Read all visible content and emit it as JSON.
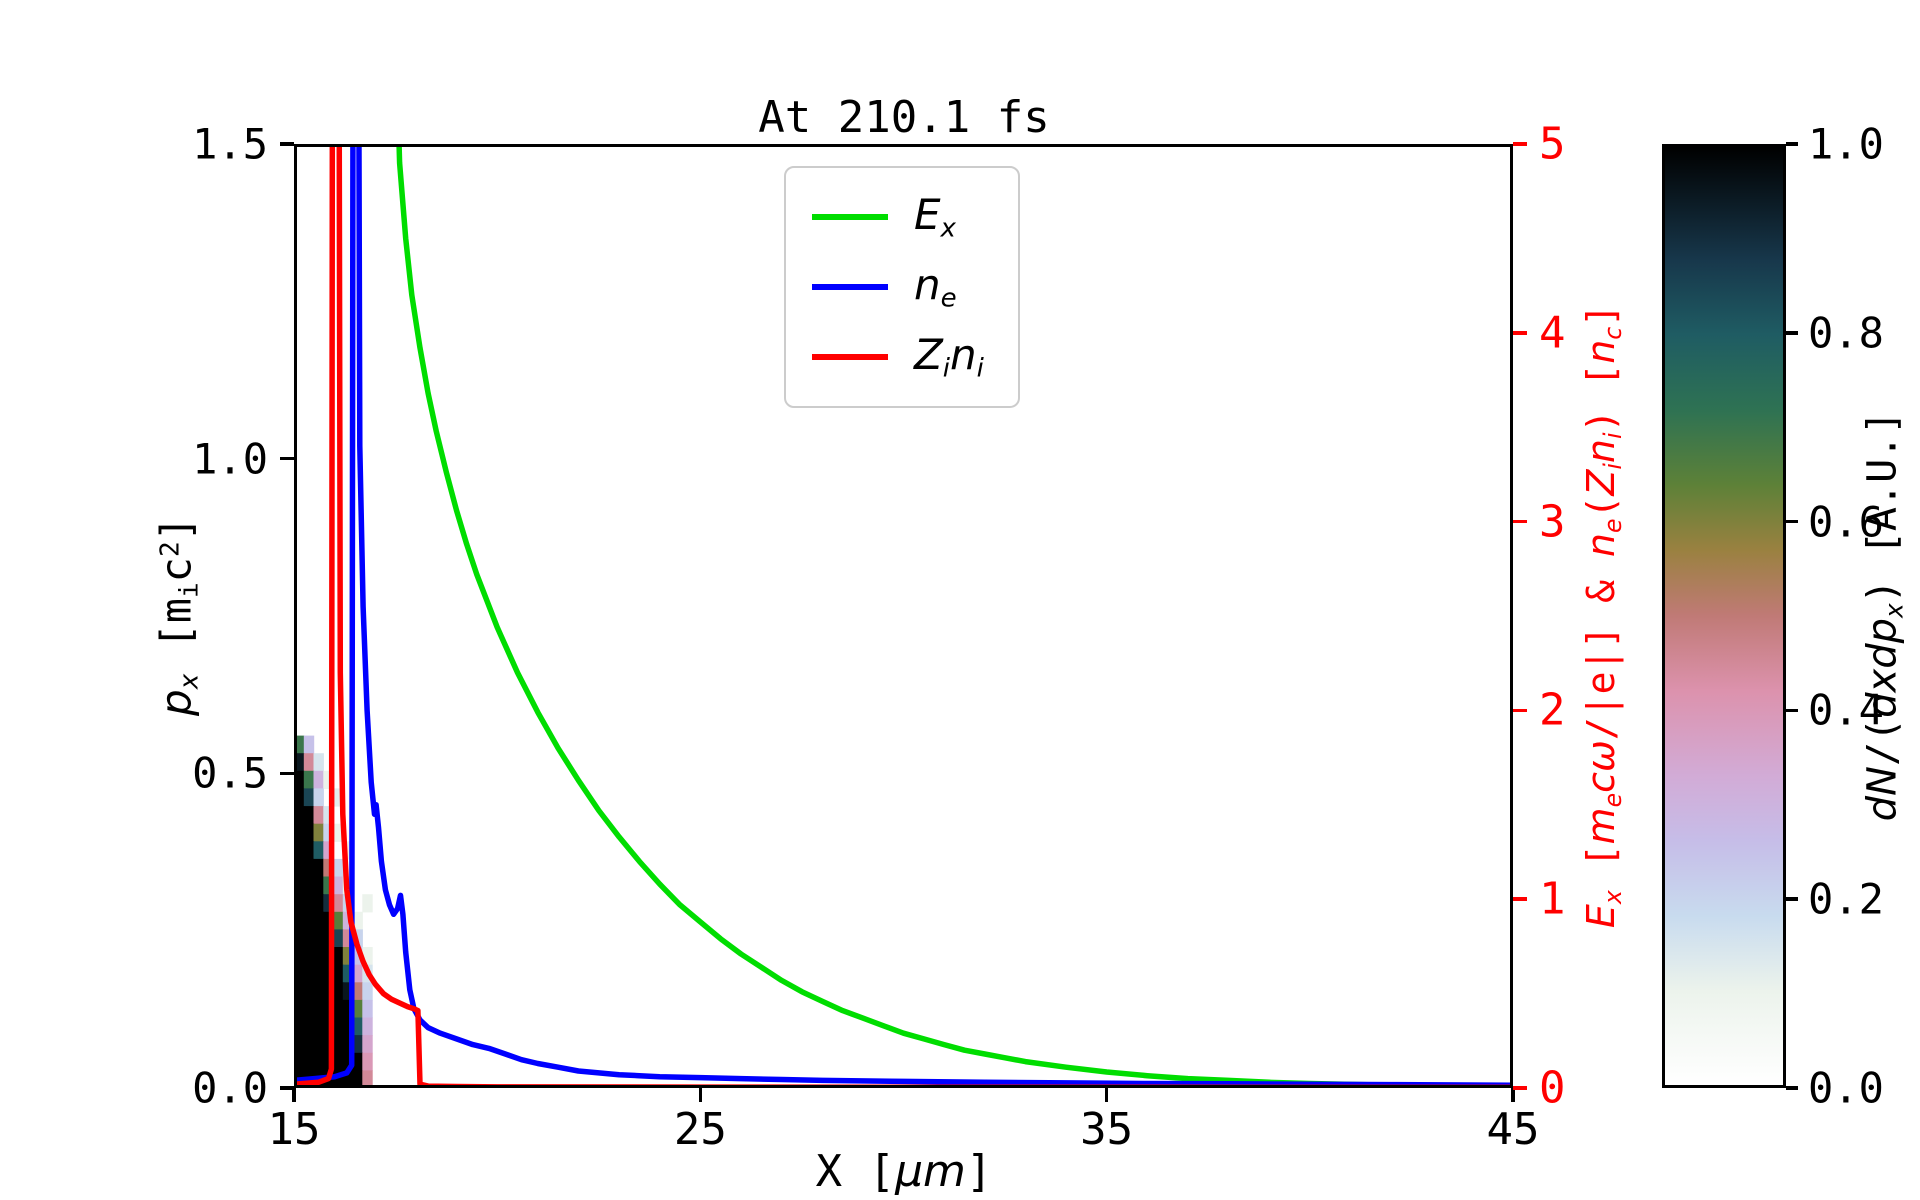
{
  "chart_data": {
    "type": "line",
    "title": "At 210.1 fs",
    "x_axis": {
      "lim": [
        15,
        45
      ],
      "ticks": [
        [
          15,
          "15"
        ],
        [
          25,
          "25"
        ],
        [
          35,
          "35"
        ],
        [
          45,
          "45"
        ]
      ],
      "label_segments": [
        [
          "X [",
          ""
        ],
        [
          "μm",
          "i"
        ],
        [
          "]",
          ""
        ]
      ]
    },
    "y_left": {
      "lim": [
        0.0,
        1.5
      ],
      "ticks": [
        [
          0.0,
          "0.0"
        ],
        [
          0.5,
          "0.5"
        ],
        [
          1.0,
          "1.0"
        ],
        [
          1.5,
          "1.5"
        ]
      ],
      "label_segments": [
        [
          "p",
          "i"
        ],
        [
          "x",
          "si"
        ],
        [
          " [m",
          ""
        ],
        [
          "i",
          "s"
        ],
        [
          "c",
          ""
        ],
        [
          "2",
          "u"
        ],
        [
          "]",
          ""
        ]
      ]
    },
    "y_right": {
      "lim": [
        0,
        5
      ],
      "color": "#ff0000",
      "ticks": [
        [
          0,
          "0"
        ],
        [
          1,
          "1"
        ],
        [
          2,
          "2"
        ],
        [
          3,
          "3"
        ],
        [
          4,
          "4"
        ],
        [
          5,
          "5"
        ]
      ],
      "label_segments": [
        [
          "E",
          "i"
        ],
        [
          "x",
          "si"
        ],
        [
          " [",
          ""
        ],
        [
          "m",
          "i"
        ],
        [
          "e",
          "si"
        ],
        [
          "c",
          "i"
        ],
        [
          "ω",
          "i"
        ],
        [
          "/|e|] & ",
          ""
        ],
        [
          "n",
          "i"
        ],
        [
          "e",
          "si"
        ],
        [
          "(",
          ""
        ],
        [
          "Z",
          "i"
        ],
        [
          "i",
          "si"
        ],
        [
          "n",
          "i"
        ],
        [
          "i",
          "si"
        ],
        [
          ") [",
          ""
        ],
        [
          "n",
          "i"
        ],
        [
          "c",
          "si"
        ],
        [
          "]",
          ""
        ]
      ]
    },
    "series": [
      {
        "name": "Ex",
        "label_segments": [
          [
            "E",
            "i"
          ],
          [
            "x",
            "si"
          ]
        ],
        "color": "#00dd00",
        "axis": "right",
        "points": [
          [
            17.45,
            6.0
          ],
          [
            17.6,
            4.9
          ],
          [
            17.75,
            4.5
          ],
          [
            17.9,
            4.2
          ],
          [
            18.1,
            3.92
          ],
          [
            18.3,
            3.68
          ],
          [
            18.5,
            3.48
          ],
          [
            18.75,
            3.26
          ],
          [
            19.0,
            3.06
          ],
          [
            19.25,
            2.88
          ],
          [
            19.5,
            2.72
          ],
          [
            19.75,
            2.58
          ],
          [
            20.0,
            2.44
          ],
          [
            20.5,
            2.2
          ],
          [
            21.0,
            1.99
          ],
          [
            21.5,
            1.8
          ],
          [
            22.0,
            1.63
          ],
          [
            22.5,
            1.47
          ],
          [
            23.0,
            1.33
          ],
          [
            23.5,
            1.2
          ],
          [
            24.0,
            1.08
          ],
          [
            24.5,
            0.97
          ],
          [
            25.0,
            0.88
          ],
          [
            25.5,
            0.79
          ],
          [
            26.0,
            0.71
          ],
          [
            26.5,
            0.64
          ],
          [
            27.0,
            0.57
          ],
          [
            27.5,
            0.51
          ],
          [
            28.0,
            0.46
          ],
          [
            28.5,
            0.41
          ],
          [
            29.0,
            0.37
          ],
          [
            29.5,
            0.33
          ],
          [
            30.0,
            0.29
          ],
          [
            30.5,
            0.26
          ],
          [
            31.0,
            0.23
          ],
          [
            31.5,
            0.2
          ],
          [
            32.0,
            0.18
          ],
          [
            32.5,
            0.16
          ],
          [
            33.0,
            0.14
          ],
          [
            34.0,
            0.11
          ],
          [
            35.0,
            0.085
          ],
          [
            36.0,
            0.065
          ],
          [
            37.0,
            0.05
          ],
          [
            38.0,
            0.04
          ],
          [
            39.0,
            0.03
          ],
          [
            40.0,
            0.024
          ],
          [
            41.0,
            0.019
          ],
          [
            42.0,
            0.015
          ],
          [
            43.0,
            0.012
          ],
          [
            44.0,
            0.01
          ],
          [
            45.0,
            0.008
          ]
        ]
      },
      {
        "name": "ne",
        "label_segments": [
          [
            "n",
            "i"
          ],
          [
            "e",
            "si"
          ]
        ],
        "color": "#0000ff",
        "axis": "right",
        "points": [
          [
            15.0,
            0.04
          ],
          [
            15.5,
            0.05
          ],
          [
            16.0,
            0.06
          ],
          [
            16.3,
            0.08
          ],
          [
            16.42,
            0.12
          ],
          [
            16.46,
            6.5
          ],
          [
            16.58,
            6.5
          ],
          [
            16.62,
            3.4
          ],
          [
            16.7,
            2.55
          ],
          [
            16.8,
            2.0
          ],
          [
            16.9,
            1.62
          ],
          [
            16.98,
            1.45
          ],
          [
            17.02,
            1.5
          ],
          [
            17.08,
            1.38
          ],
          [
            17.15,
            1.2
          ],
          [
            17.25,
            1.05
          ],
          [
            17.35,
            0.97
          ],
          [
            17.45,
            0.92
          ],
          [
            17.55,
            0.95
          ],
          [
            17.62,
            1.02
          ],
          [
            17.68,
            0.92
          ],
          [
            17.75,
            0.72
          ],
          [
            17.85,
            0.52
          ],
          [
            17.95,
            0.42
          ],
          [
            18.1,
            0.36
          ],
          [
            18.3,
            0.32
          ],
          [
            18.6,
            0.29
          ],
          [
            19.0,
            0.26
          ],
          [
            19.4,
            0.23
          ],
          [
            19.8,
            0.21
          ],
          [
            20.2,
            0.18
          ],
          [
            20.6,
            0.15
          ],
          [
            21.0,
            0.13
          ],
          [
            21.5,
            0.11
          ],
          [
            22.0,
            0.09
          ],
          [
            22.5,
            0.08
          ],
          [
            23.0,
            0.07
          ],
          [
            23.5,
            0.065
          ],
          [
            24.0,
            0.06
          ],
          [
            25.0,
            0.055
          ],
          [
            26.0,
            0.05
          ],
          [
            27.0,
            0.045
          ],
          [
            28.0,
            0.04
          ],
          [
            30.0,
            0.035
          ],
          [
            32.0,
            0.03
          ],
          [
            34.0,
            0.027
          ],
          [
            36.0,
            0.024
          ],
          [
            38.0,
            0.022
          ],
          [
            40.0,
            0.02
          ],
          [
            42.0,
            0.018
          ],
          [
            45.0,
            0.015
          ]
        ]
      },
      {
        "name": "Zini",
        "label_segments": [
          [
            "Z",
            "i"
          ],
          [
            "i",
            "si"
          ],
          [
            "n",
            "i"
          ],
          [
            "i",
            "si"
          ]
        ],
        "color": "#ff0000",
        "axis": "right",
        "points": [
          [
            15.0,
            0.02
          ],
          [
            15.6,
            0.03
          ],
          [
            15.85,
            0.05
          ],
          [
            15.92,
            0.1
          ],
          [
            15.95,
            6.5
          ],
          [
            16.1,
            6.5
          ],
          [
            16.14,
            2.2
          ],
          [
            16.2,
            1.45
          ],
          [
            16.3,
            1.05
          ],
          [
            16.4,
            0.88
          ],
          [
            16.55,
            0.76
          ],
          [
            16.7,
            0.67
          ],
          [
            16.85,
            0.6
          ],
          [
            17.0,
            0.55
          ],
          [
            17.2,
            0.5
          ],
          [
            17.4,
            0.47
          ],
          [
            17.6,
            0.45
          ],
          [
            17.8,
            0.43
          ],
          [
            17.95,
            0.42
          ],
          [
            18.05,
            0.41
          ],
          [
            18.1,
            0.02
          ],
          [
            18.3,
            0.01
          ],
          [
            19.0,
            0.008
          ],
          [
            20.0,
            0.006
          ],
          [
            25.0,
            0.005
          ],
          [
            30.0,
            0.004
          ],
          [
            45.0,
            0.003
          ]
        ]
      }
    ],
    "heatmap": {
      "description": "electron phase-space density dN/(dxdpx), plotted on left axis",
      "x0": 15.0,
      "dx": 0.24,
      "p0": 0.0,
      "dp": 0.028,
      "rows_top_to_bottom": [
        [
          0.7,
          0.25,
          0,
          0,
          0,
          0,
          0,
          0
        ],
        [
          0.95,
          0.45,
          0.15,
          0,
          0,
          0,
          0,
          0
        ],
        [
          1,
          0.7,
          0.3,
          0.1,
          0,
          0,
          0,
          0
        ],
        [
          1,
          0.85,
          0.2,
          0,
          0.12,
          0,
          0,
          0
        ],
        [
          1,
          1,
          0.45,
          0.15,
          0,
          0,
          0,
          0
        ],
        [
          1,
          1,
          0.6,
          0.2,
          0.1,
          0,
          0,
          0
        ],
        [
          1,
          1,
          0.8,
          0.35,
          0,
          0.1,
          0,
          0
        ],
        [
          1,
          1,
          1,
          0.5,
          0.2,
          0,
          0,
          0
        ],
        [
          1,
          1,
          1,
          0.7,
          0.3,
          0.1,
          0,
          0
        ],
        [
          1,
          1,
          1,
          0.9,
          0.45,
          0.2,
          0,
          0.1
        ],
        [
          1,
          1,
          1,
          1,
          0.65,
          0.3,
          0.1,
          0
        ],
        [
          1,
          1,
          1,
          1,
          0.85,
          0.45,
          0.2,
          0
        ],
        [
          1,
          1,
          1,
          1,
          1,
          0.6,
          0.25,
          0.1
        ],
        [
          1,
          1,
          1,
          1,
          1,
          0.8,
          0.35,
          0.15
        ],
        [
          1,
          1,
          1,
          1,
          1,
          0.95,
          0.5,
          0.2
        ],
        [
          1,
          1,
          1,
          1,
          1,
          1,
          0.65,
          0.25
        ],
        [
          1,
          1,
          1,
          1,
          1,
          1,
          0.8,
          0.3
        ],
        [
          1,
          1,
          1,
          1,
          1,
          1,
          0.9,
          0.35
        ],
        [
          1,
          1,
          1,
          1,
          1,
          1,
          1,
          0.4
        ],
        [
          1,
          1,
          1,
          1,
          1,
          1,
          1,
          0.45
        ]
      ]
    },
    "colorbar": {
      "lim": [
        0.0,
        1.0
      ],
      "ticks": [
        [
          1.0,
          "1.0"
        ],
        [
          0.8,
          "0.8"
        ],
        [
          0.6,
          "0.6"
        ],
        [
          0.4,
          "0.4"
        ],
        [
          0.2,
          "0.2"
        ],
        [
          0.0,
          "0.0"
        ]
      ],
      "label_segments": [
        [
          "d",
          "i"
        ],
        [
          "N",
          "i"
        ],
        [
          "/(",
          ""
        ],
        [
          "d",
          "i"
        ],
        [
          "x",
          "i"
        ],
        [
          "d",
          "i"
        ],
        [
          "p",
          "i"
        ],
        [
          "x",
          "si"
        ],
        [
          ") [A.U.]",
          ""
        ]
      ],
      "stops": [
        [
          0.0,
          "#ffffff"
        ],
        [
          0.1,
          "#ecf3ec"
        ],
        [
          0.18,
          "#c8dbee"
        ],
        [
          0.26,
          "#c6bde8"
        ],
        [
          0.33,
          "#d2abd6"
        ],
        [
          0.42,
          "#dc92ad"
        ],
        [
          0.5,
          "#c07a76"
        ],
        [
          0.57,
          "#9a8140"
        ],
        [
          0.64,
          "#5d8138"
        ],
        [
          0.72,
          "#2e7253"
        ],
        [
          0.8,
          "#1f5c63"
        ],
        [
          0.88,
          "#17374b"
        ],
        [
          1.0,
          "#000000"
        ]
      ]
    },
    "legend_position": "upper center",
    "grid": false
  }
}
